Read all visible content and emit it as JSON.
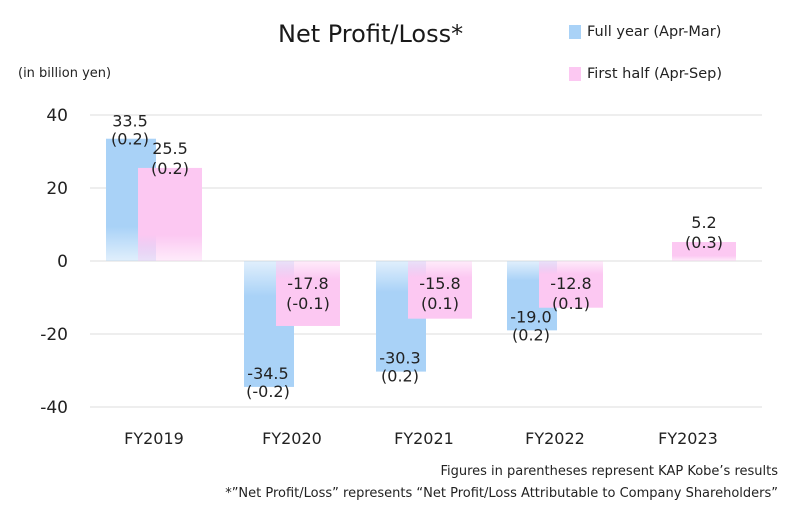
{
  "colors": {
    "full_year": "#a9d2f7",
    "first_half": "#fcc8f2",
    "grid": "#dddddd",
    "text": "#222222"
  },
  "chart_data": {
    "type": "bar",
    "title": "Net Profit/Loss*",
    "ylabel": "(in billion yen)",
    "ylim": [
      -40,
      40
    ],
    "yticks": [
      40,
      20,
      0,
      -20,
      -40
    ],
    "yticklabels": [
      "40",
      "20",
      "0",
      "-20",
      "-40"
    ],
    "grid": true,
    "legend_position": "top-right",
    "categories": [
      "FY2019",
      "FY2020",
      "FY2021",
      "FY2022",
      "FY2023"
    ],
    "series": [
      {
        "name": "Full year (Apr-Mar)",
        "values": [
          33.5,
          -34.5,
          -30.3,
          -19.0,
          null
        ],
        "value_labels": [
          "33.5",
          "-34.5",
          "-30.3",
          "-19.0",
          ""
        ],
        "kap_kobe_labels": [
          "(0.2)",
          "(-0.2)",
          "(0.2)",
          "(0.2)",
          ""
        ]
      },
      {
        "name": "First half (Apr-Sep)",
        "values": [
          25.5,
          -17.8,
          -15.8,
          -12.8,
          5.2
        ],
        "value_labels": [
          "25.5",
          "-17.8",
          "-15.8",
          "-12.8",
          "5.2"
        ],
        "kap_kobe_labels": [
          "(0.2)",
          "(-0.1)",
          "(0.1)",
          "(0.1)",
          "(0.3)"
        ]
      }
    ]
  },
  "footnotes": {
    "parentheses_note": "Figures in parentheses represent KAP Kobe’s results",
    "definition_note": "*”Net Profit/Loss” represents “Net Profit/Loss Attributable to Company Shareholders”"
  }
}
